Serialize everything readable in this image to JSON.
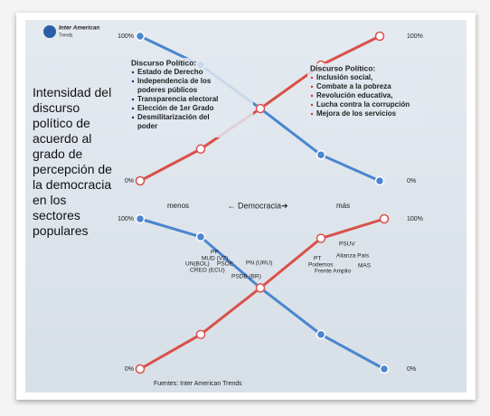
{
  "slide": {
    "logo": "Inter American",
    "logo_sub": "Trends",
    "title": "Intensidad del discurso político de acuerdo al grado de percepción de la democracia en los sectores populares",
    "axis_low": "menos",
    "axis_label": "← Democracia➔",
    "axis_high": "más",
    "source": "Fuentes: Inter American Trends"
  },
  "chart_data": [
    {
      "type": "line",
      "ylim": [
        0,
        100
      ],
      "yticks": [
        {
          "value": 100,
          "label": "100%"
        },
        {
          "value": 0,
          "label": "0%"
        }
      ],
      "y2lim": [
        0,
        100
      ],
      "y2ticks": [
        {
          "value": 100,
          "label": "100%"
        },
        {
          "value": 0,
          "label": "0%"
        }
      ],
      "series": [
        {
          "color": "#4a86cf",
          "marker_fill": "#4a86cf",
          "values": [
            100,
            80,
            50,
            18,
            0
          ]
        },
        {
          "color": "#d9504a",
          "marker_fill": "#ffffff",
          "values": [
            0,
            22,
            50,
            80,
            100
          ]
        }
      ],
      "boxes": [
        {
          "title": "Discurso Político:",
          "color": "#1f2f5a",
          "items": [
            "Estado de Derecho",
            "Independencia de los poderes públicos",
            "Transparencia electoral",
            "Elección de 1er Grado",
            "Desmilitarización del poder"
          ]
        },
        {
          "title": "Discurso Político:",
          "color": "#d9332c",
          "items": [
            "Inclusión social,",
            "Combate a la pobreza",
            "Revolución educativa,",
            "Lucha contra la corrupción",
            "Mejora de los servicios"
          ]
        }
      ]
    },
    {
      "type": "line",
      "ylim": [
        0,
        100
      ],
      "yticks": [
        {
          "value": 100,
          "label": "100%"
        },
        {
          "value": 0,
          "label": "0%"
        }
      ],
      "y2lim": [
        0,
        100
      ],
      "y2ticks": [
        {
          "value": 100,
          "label": "100%"
        },
        {
          "value": 0,
          "label": "0%"
        }
      ],
      "series": [
        {
          "color": "#4a86cf",
          "marker_fill": "#4a86cf",
          "values": [
            100,
            88,
            54,
            23,
            0
          ]
        },
        {
          "color": "#d9504a",
          "marker_fill": "#ffffff",
          "values": [
            0,
            23,
            54,
            87,
            100
          ]
        }
      ],
      "annotations": [
        "PP",
        "MUD (VZ)",
        "UN(BOL)",
        "PSOE",
        "CREO (ECU)",
        "PSDB (BR)",
        "PN (URU)",
        "PSUV",
        "Alianza País",
        "PT",
        "Podemos",
        "MAS",
        "Frente Amplio"
      ]
    }
  ]
}
